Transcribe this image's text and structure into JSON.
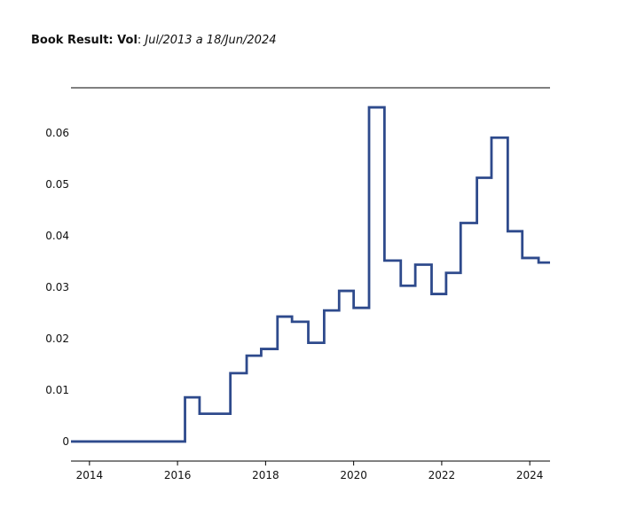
{
  "header": {
    "title_bold": "Book Result: Vol",
    "title_sep": ": ",
    "title_range": "Jul/2013 a 18/Jun/2024"
  },
  "chart_data": {
    "type": "line",
    "step": "post",
    "title": "Book Result: Vol: Jul/2013 a 18/Jun/2024",
    "xlabel": "",
    "ylabel": "",
    "xlim": [
      2013.58,
      2024.46
    ],
    "ylim": [
      -0.0038,
      0.0688
    ],
    "xticks": [
      2014,
      2016,
      2018,
      2020,
      2022,
      2024
    ],
    "xtick_labels": [
      "2014",
      "2016",
      "2018",
      "2020",
      "2022",
      "2024"
    ],
    "yticks": [
      0,
      0.01,
      0.02,
      0.03,
      0.04,
      0.05,
      0.06
    ],
    "ytick_labels": [
      "0",
      "0.01",
      "0.02",
      "0.03",
      "0.04",
      "0.05",
      "0.06"
    ],
    "grid": false,
    "legend": "none",
    "colors": {
      "line": "#2e4a8c",
      "axis": "#000000",
      "text": "#111111"
    },
    "series": [
      {
        "x": [
          2013.58,
          2016.17,
          2016.5,
          2017.2,
          2017.57,
          2017.9,
          2018.27,
          2018.6,
          2018.97,
          2019.33,
          2019.67,
          2020.0,
          2020.35,
          2020.7,
          2021.07,
          2021.4,
          2021.77,
          2022.1,
          2022.43,
          2022.8,
          2023.13,
          2023.5,
          2023.83,
          2024.2,
          2024.46
        ],
        "values": [
          0,
          0.0086,
          0.0054,
          0.0133,
          0.0167,
          0.018,
          0.0243,
          0.0233,
          0.0192,
          0.0255,
          0.0293,
          0.026,
          0.065,
          0.0352,
          0.0303,
          0.0344,
          0.0287,
          0.0328,
          0.0425,
          0.0513,
          0.0591,
          0.0409,
          0.0357,
          0.0348,
          0.0348
        ]
      }
    ]
  }
}
